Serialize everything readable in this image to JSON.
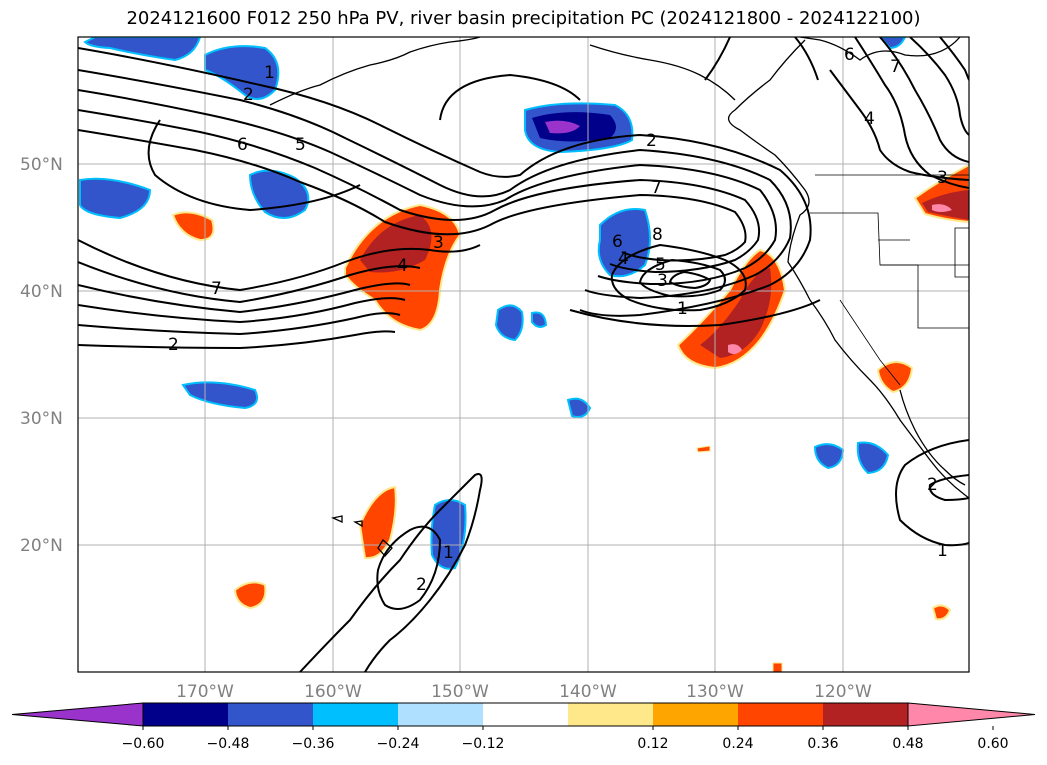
{
  "title": "2024121600 F012 250 hPa PV, river basin precipitation PC (2024121800 - 2024122100)",
  "lat_labels": [
    "50°N",
    "40°N",
    "30°N",
    "20°N"
  ],
  "lon_labels": [
    "170°W",
    "160°W",
    "150°W",
    "140°W",
    "130°W",
    "120°W"
  ],
  "colorbar": {
    "ticks": [
      "−0.60",
      "−0.48",
      "−0.36",
      "−0.24",
      "−0.12",
      "0.12",
      "0.24",
      "0.36",
      "0.48",
      "0.60"
    ],
    "colors": {
      "under": "#9933cc",
      "bins": [
        "#9933cc",
        "#00008b",
        "#3355cc",
        "#00bfff",
        "#b0e0ff",
        "#ffffff",
        "#ffe88a",
        "#ffa500",
        "#ff4500",
        "#b22222",
        "#ff88aa"
      ],
      "over": "#ff88aa"
    }
  },
  "pv_contour_labels": [
    "1",
    "2",
    "6",
    "5",
    "7",
    "2",
    "4",
    "3",
    "2",
    "7",
    "6",
    "8",
    "4",
    "5",
    "3",
    "1",
    "6",
    "7",
    "4",
    "3",
    "2",
    "1",
    "2",
    "1"
  ]
}
